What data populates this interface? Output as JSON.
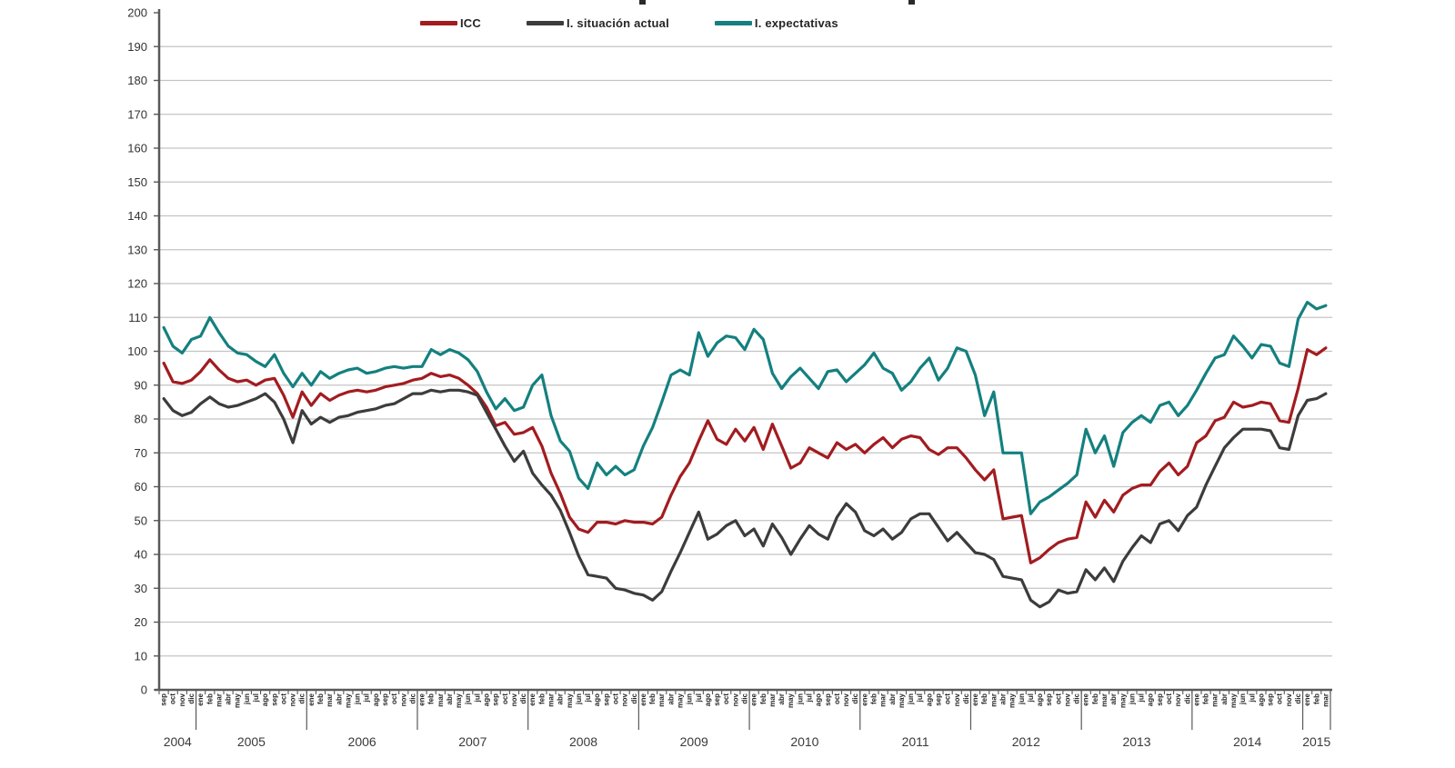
{
  "legend": {
    "items": [
      {
        "label": "ICC",
        "color": "#A21C20"
      },
      {
        "label": "I. situación actual",
        "color": "#3C3C3C"
      },
      {
        "label": "I. expectativas",
        "color": "#14807F"
      }
    ]
  },
  "colors": {
    "grid": "#C4C4C4",
    "axis": "#595959",
    "tick_text": "#333333",
    "month_text": "#2B2B2B",
    "year_text": "#3A3A3A"
  },
  "chart_data": {
    "type": "line",
    "title": "",
    "xlabel": "",
    "ylabel": "",
    "ylim": [
      0,
      200
    ],
    "ytick_step": 10,
    "yticks": [
      0,
      10,
      20,
      30,
      40,
      50,
      60,
      70,
      80,
      90,
      100,
      110,
      120,
      130,
      140,
      150,
      160,
      170,
      180,
      190,
      200
    ],
    "grid": true,
    "legend_position": "top",
    "years": [
      {
        "label": "2004",
        "months": 4
      },
      {
        "label": "2005",
        "months": 12
      },
      {
        "label": "2006",
        "months": 12
      },
      {
        "label": "2007",
        "months": 12
      },
      {
        "label": "2008",
        "months": 12
      },
      {
        "label": "2009",
        "months": 12
      },
      {
        "label": "2010",
        "months": 12
      },
      {
        "label": "2011",
        "months": 12
      },
      {
        "label": "2012",
        "months": 12
      },
      {
        "label": "2013",
        "months": 12
      },
      {
        "label": "2014",
        "months": 12
      },
      {
        "label": "2015",
        "months": 3
      }
    ],
    "x_months": [
      "sep",
      "oct",
      "nov",
      "dic",
      "ene",
      "feb",
      "mar",
      "abr",
      "may",
      "jun",
      "jul",
      "ago",
      "sep",
      "oct",
      "nov",
      "dic",
      "ene",
      "feb",
      "mar",
      "abr",
      "may",
      "jun",
      "jul",
      "ago",
      "sep",
      "oct",
      "nov",
      "dic",
      "ene",
      "feb",
      "mar",
      "abr",
      "may",
      "jun",
      "jul",
      "ago",
      "sep",
      "oct",
      "nov",
      "dic",
      "ene",
      "feb",
      "mar",
      "abr",
      "may",
      "jun",
      "jul",
      "ago",
      "sep",
      "oct",
      "nov",
      "dic",
      "ene",
      "feb",
      "mar",
      "abr",
      "may",
      "jun",
      "jul",
      "ago",
      "sep",
      "oct",
      "nov",
      "dic",
      "ene",
      "feb",
      "mar",
      "abr",
      "may",
      "jun",
      "jul",
      "ago",
      "sep",
      "oct",
      "nov",
      "dic",
      "ene",
      "feb",
      "mar",
      "abr",
      "may",
      "jun",
      "jul",
      "ago",
      "sep",
      "oct",
      "nov",
      "dic",
      "ene",
      "feb",
      "mar",
      "abr",
      "may",
      "jun",
      "jul",
      "ago",
      "sep",
      "oct",
      "nov",
      "dic",
      "ene",
      "feb",
      "mar",
      "abr",
      "may",
      "jun",
      "jul",
      "ago",
      "sep",
      "oct",
      "nov",
      "dic",
      "ene",
      "feb",
      "mar",
      "abr",
      "may",
      "jun",
      "jul",
      "ago",
      "sep",
      "oct",
      "nov",
      "dic",
      "ene",
      "feb",
      "mar"
    ],
    "series": [
      {
        "name": "ICC",
        "color": "#A21C20",
        "values": [
          96.5,
          91,
          90.5,
          91.5,
          94,
          97.5,
          94.5,
          92,
          91,
          91.5,
          90,
          91.5,
          92,
          87,
          80.5,
          88,
          84,
          87.5,
          85.5,
          87,
          88,
          88.5,
          88,
          88.5,
          89.5,
          90,
          90.5,
          91.5,
          92,
          93.5,
          92.5,
          93,
          92,
          90,
          87.5,
          83.5,
          78,
          79,
          75.5,
          76,
          77.5,
          72,
          64,
          58,
          51,
          47.5,
          46.5,
          49.5,
          49.5,
          49,
          50,
          49.5,
          49.5,
          49,
          51,
          57.5,
          63,
          67,
          73.5,
          79.5,
          74,
          72.5,
          77,
          73.5,
          77.5,
          71,
          78.5,
          72,
          65.5,
          67,
          71.5,
          70,
          68.5,
          73,
          71,
          72.5,
          70,
          72.5,
          74.5,
          71.5,
          74,
          75,
          74.5,
          71,
          69.5,
          71.5,
          71.5,
          68.5,
          65,
          62,
          65,
          50.5,
          51,
          51.5,
          37.5,
          39,
          41.5,
          43.5,
          44.5,
          45,
          55.5,
          51,
          56,
          52.5,
          57.5,
          59.5,
          60.5,
          60.5,
          64.5,
          67,
          63.5,
          66,
          73,
          75,
          79.5,
          80.5,
          85,
          83.5,
          84,
          85,
          84.5,
          79.5,
          79,
          89,
          100.5,
          99,
          101
        ]
      },
      {
        "name": "I. situación actual",
        "color": "#3C3C3C",
        "values": [
          86,
          82.5,
          81,
          82,
          84.5,
          86.5,
          84.5,
          83.5,
          84,
          85,
          86,
          87.5,
          85,
          80,
          73,
          82.5,
          78.5,
          80.5,
          79,
          80.5,
          81,
          82,
          82.5,
          83,
          84,
          84.5,
          86,
          87.5,
          87.5,
          88.5,
          88,
          88.5,
          88.5,
          88,
          87,
          82,
          77,
          72,
          67.5,
          70.5,
          64,
          60.5,
          57.5,
          53,
          46.5,
          39.5,
          34,
          33.5,
          33,
          30,
          29.5,
          28.5,
          28,
          26.5,
          29,
          35,
          40.5,
          46.5,
          52.5,
          44.5,
          46,
          48.5,
          50,
          45.5,
          47.5,
          42.5,
          49,
          45,
          40,
          44.5,
          48.5,
          46,
          44.5,
          51,
          55,
          52.5,
          47,
          45.5,
          47.5,
          44.5,
          46.5,
          50.5,
          52,
          52,
          48,
          44,
          46.5,
          43.5,
          40.5,
          40,
          38.5,
          33.5,
          33,
          32.5,
          26.5,
          24.5,
          26,
          29.5,
          28.5,
          29,
          35.5,
          32.5,
          36,
          32,
          38,
          42,
          45.5,
          43.5,
          49,
          50,
          47,
          51.5,
          54,
          60.5,
          66,
          71.5,
          74.5,
          77,
          77,
          77,
          76.5,
          71.5,
          71,
          81,
          85.5,
          86,
          87.5
        ]
      },
      {
        "name": "I. expectativas",
        "color": "#14807F",
        "values": [
          107,
          101.5,
          99.5,
          103.5,
          104.5,
          110,
          105.5,
          101.5,
          99.5,
          99,
          97,
          95.5,
          99,
          93.5,
          89.5,
          93.5,
          90,
          94,
          92,
          93.5,
          94.5,
          95,
          93.5,
          94,
          95,
          95.5,
          95,
          95.5,
          95.5,
          100.5,
          99,
          100.5,
          99.5,
          97.5,
          94,
          88,
          83,
          86,
          82.5,
          83.5,
          90,
          93,
          81,
          73.5,
          70.5,
          62.5,
          59.5,
          67,
          63.5,
          66,
          63.5,
          65,
          72,
          77.5,
          85,
          93,
          94.5,
          93,
          105.5,
          98.5,
          102.5,
          104.5,
          104,
          100.5,
          106.5,
          103.5,
          93.5,
          89,
          92.5,
          95,
          92,
          89,
          94,
          94.5,
          91,
          93.5,
          96,
          99.5,
          95,
          93.5,
          88.5,
          91,
          95,
          98,
          91.5,
          95,
          101,
          100,
          93,
          81,
          88,
          70,
          70,
          70,
          52,
          55.5,
          57,
          59,
          61,
          63.5,
          77,
          70,
          75,
          66,
          76,
          79,
          81,
          79,
          84,
          85,
          81,
          84,
          88.5,
          93.5,
          98,
          99,
          104.5,
          101.5,
          98,
          102,
          101.5,
          96.5,
          95.5,
          109.5,
          114.5,
          112.5,
          113.5
        ]
      }
    ]
  }
}
